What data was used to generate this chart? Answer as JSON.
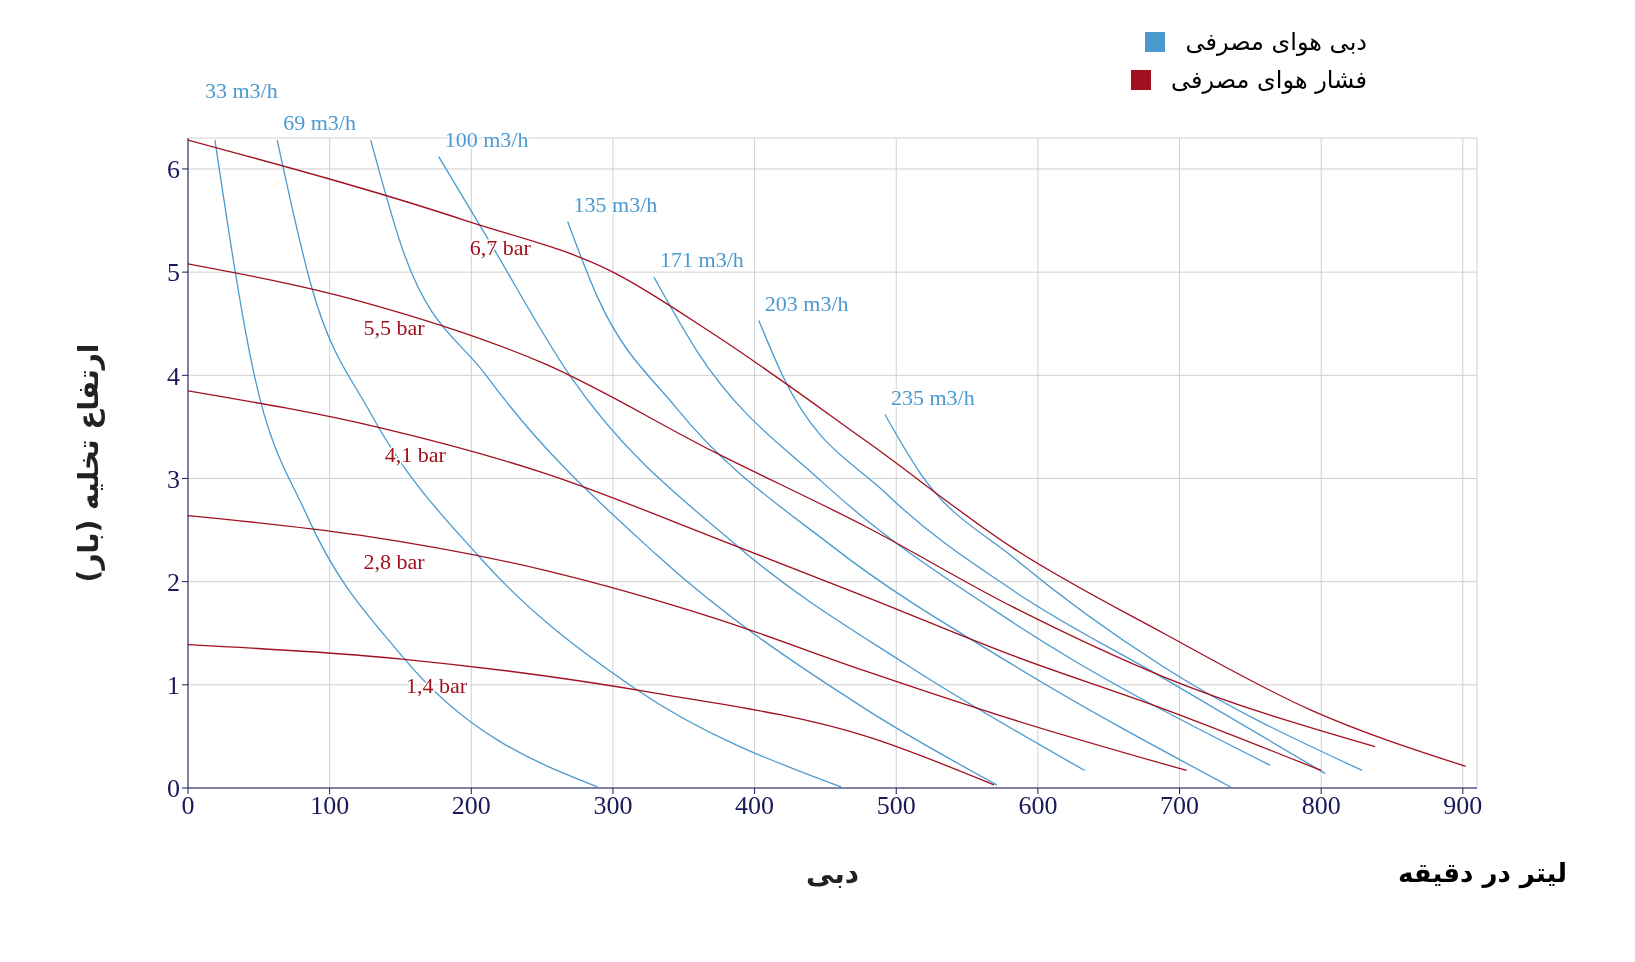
{
  "chart_data": {
    "type": "line",
    "xlabel": "دبی",
    "ylabel": "ارتفاع تخلیه (بار)",
    "annotations": [
      "دبی هوای مصرفی",
      "فشار هوای مصرفی",
      "لیتر در دقیقه"
    ],
    "xlim": [
      0,
      910
    ],
    "xticks": [
      0,
      100,
      200,
      300,
      400,
      500,
      600,
      700,
      800,
      900
    ],
    "ylim": [
      0,
      6.3
    ],
    "yticks": [
      0,
      1,
      2,
      3,
      4,
      5,
      6
    ],
    "grid": true,
    "marker": "none",
    "line_style": "solid",
    "series": [
      {
        "name": "33 m3/h",
        "color": "#4a9ad0",
        "x": [
          19,
          47,
          84,
          151,
          289
        ],
        "values": [
          6.28,
          3.99,
          2.64,
          1.28,
          0.01
        ]
      },
      {
        "name": "69 m3/h",
        "color": "#4a9ad0",
        "x": [
          63,
          88,
          129,
          207,
          315,
          461
        ],
        "values": [
          6.28,
          4.82,
          3.63,
          2.22,
          0.97,
          0.01
        ]
      },
      {
        "color": "#4a9ad0",
        "x": [
          129,
          151,
          211,
          330,
          479,
          571
        ],
        "values": [
          6.28,
          5.24,
          3.99,
          2.27,
          0.76,
          0.03
        ]
      },
      {
        "name": "100 m3/h",
        "color": "#4a9ad0",
        "x": [
          177,
          211,
          270,
          390,
          509,
          633
        ],
        "values": [
          6.12,
          5.34,
          3.99,
          2.32,
          1.18,
          0.17
        ]
      },
      {
        "name": "135 m3/h",
        "color": "#4a9ad0",
        "x": [
          268,
          289,
          345,
          457,
          584,
          736
        ],
        "values": [
          5.49,
          4.76,
          3.68,
          2.32,
          1.18,
          0.01
        ]
      },
      {
        "name": "171 m3/h",
        "color": "#4a9ad0",
        "x": [
          329,
          360,
          449,
          584,
          764
        ],
        "values": [
          4.95,
          4.22,
          2.95,
          1.59,
          0.22
        ]
      },
      {
        "name": "203 m3/h",
        "color": "#4a9ad0",
        "x": [
          403,
          420,
          494,
          583,
          688,
          803
        ],
        "values": [
          4.53,
          3.99,
          2.84,
          1.91,
          1.07,
          0.14
        ]
      },
      {
        "name": "235 m3/h",
        "color": "#4a9ad0",
        "x": [
          492,
          517,
          584,
          688,
          829
        ],
        "values": [
          3.62,
          3.05,
          2.22,
          1.18,
          0.17
        ]
      },
      {
        "name": "6,7 bar",
        "color": "#a0101e",
        "x": [
          0,
          196,
          300,
          371,
          479,
          583,
          690,
          792,
          902
        ],
        "values": [
          6.28,
          5.5,
          5.0,
          4.4,
          3.36,
          2.32,
          1.49,
          0.76,
          0.21
        ]
      },
      {
        "name": "5,5 bar",
        "color": "#a0101e",
        "x": [
          0,
          121,
          252,
          371,
          479,
          583,
          690,
          838
        ],
        "values": [
          5.08,
          4.72,
          4.11,
          3.26,
          2.53,
          1.75,
          1.07,
          0.4
        ]
      },
      {
        "name": "4,1 bar",
        "color": "#a0101e",
        "x": [
          0,
          136,
          252,
          371,
          479,
          583,
          690,
          800
        ],
        "values": [
          3.85,
          3.49,
          3.05,
          2.43,
          1.85,
          1.28,
          0.76,
          0.17
        ]
      },
      {
        "name": "2,8 bar",
        "color": "#a0101e",
        "x": [
          0,
          121,
          252,
          371,
          479,
          583,
          705
        ],
        "values": [
          2.64,
          2.45,
          2.11,
          1.65,
          1.13,
          0.66,
          0.17
        ]
      },
      {
        "name": "1,4 bar",
        "color": "#a0101e",
        "x": [
          0,
          151,
          330,
          479,
          569
        ],
        "values": [
          1.39,
          1.25,
          0.92,
          0.5,
          0.03
        ]
      }
    ]
  }
}
